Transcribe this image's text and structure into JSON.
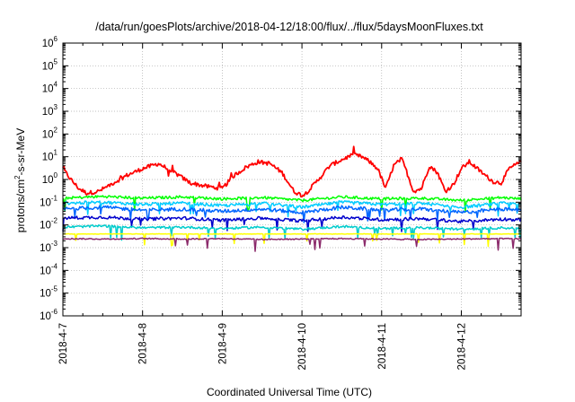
{
  "chart_data": {
    "type": "line",
    "title": "/data/run/goesPlots/archive/2018-04-12/18:00/flux/../flux/5daysMoonFluxes.txt",
    "xlabel": "Coordinated Universal Time (UTC)",
    "ylabel": "protons/cm2-s-sr-MeV",
    "yscale": "log",
    "ylim": [
      1e-06,
      1000000.0
    ],
    "xlim": [
      "2018-4-7",
      "2018-4-12 18:00"
    ],
    "x_ticks": [
      "2018-4-7",
      "2018-4-8",
      "2018-4-9",
      "2018-4-10",
      "2018-4-11",
      "2018-4-12"
    ],
    "y_ticks": [
      -6,
      -5,
      -4,
      -3,
      -2,
      -1,
      0,
      1,
      2,
      3,
      4,
      5,
      6
    ],
    "grid": true,
    "legend": "none",
    "series": [
      {
        "color": "#ff0000",
        "x_days": [
          0,
          0.1,
          0.2,
          0.3,
          0.45,
          0.6,
          0.8,
          1.0,
          1.2,
          1.4,
          1.6,
          1.8,
          2.0,
          2.15,
          2.3,
          2.45,
          2.6,
          2.75,
          2.9,
          3.0,
          3.05,
          3.15,
          3.25,
          3.35,
          3.45,
          3.55,
          3.65,
          3.75,
          3.85,
          3.95,
          4.05,
          4.15,
          4.25,
          4.3,
          4.4,
          4.5,
          4.6,
          4.7,
          4.8,
          4.9,
          5.0,
          5.1,
          5.2,
          5.3,
          5.4,
          5.5,
          5.6,
          5.75
        ],
        "values": [
          3,
          1,
          0.4,
          0.25,
          0.3,
          0.6,
          1.5,
          3,
          5,
          2,
          0.7,
          0.5,
          0.4,
          1.5,
          3.5,
          6,
          5,
          2,
          0.3,
          0.2,
          0.25,
          0.6,
          1.5,
          4,
          6,
          9,
          12,
          10,
          6,
          3,
          0.4,
          4,
          8,
          3,
          0.3,
          0.4,
          4,
          2,
          0.3,
          0.6,
          3,
          6,
          3,
          1.5,
          0.8,
          0.7,
          3,
          6
        ]
      },
      {
        "color": "#00ff00",
        "x_days": [
          0,
          0.5,
          1.0,
          1.5,
          2.0,
          2.5,
          3.0,
          3.5,
          4.0,
          4.5,
          5.0,
          5.5,
          5.75
        ],
        "values": [
          0.15,
          0.18,
          0.15,
          0.17,
          0.14,
          0.16,
          0.12,
          0.17,
          0.14,
          0.15,
          0.12,
          0.16,
          0.14
        ]
      },
      {
        "color": "#00ccff",
        "x_days": [
          0,
          0.5,
          1.0,
          1.5,
          2.0,
          2.5,
          3.0,
          3.5,
          4.0,
          4.5,
          5.0,
          5.5,
          5.75
        ],
        "values": [
          0.09,
          0.1,
          0.08,
          0.09,
          0.07,
          0.09,
          0.06,
          0.1,
          0.08,
          0.09,
          0.06,
          0.09,
          0.08
        ]
      },
      {
        "color": "#0066ff",
        "x_days": [
          0,
          0.5,
          1.0,
          1.5,
          2.0,
          2.5,
          3.0,
          3.5,
          4.0,
          4.5,
          5.0,
          5.5,
          5.75
        ],
        "values": [
          0.05,
          0.06,
          0.045,
          0.05,
          0.04,
          0.05,
          0.035,
          0.06,
          0.045,
          0.05,
          0.035,
          0.05,
          0.045
        ]
      },
      {
        "color": "#0000cc",
        "x_days": [
          0,
          0.5,
          1.0,
          1.5,
          2.0,
          2.5,
          3.0,
          3.5,
          4.0,
          4.5,
          5.0,
          5.5,
          5.75
        ],
        "values": [
          0.02,
          0.022,
          0.018,
          0.02,
          0.016,
          0.02,
          0.015,
          0.022,
          0.017,
          0.019,
          0.014,
          0.018,
          0.017
        ]
      },
      {
        "color": "#00cccc",
        "x_days": [
          0,
          0.5,
          1.0,
          1.5,
          2.0,
          2.5,
          3.0,
          3.5,
          4.0,
          4.5,
          5.0,
          5.5,
          5.75
        ],
        "values": [
          0.008,
          0.009,
          0.0075,
          0.008,
          0.007,
          0.008,
          0.0065,
          0.0085,
          0.007,
          0.0075,
          0.0065,
          0.0075,
          0.007
        ]
      },
      {
        "color": "#ffff00",
        "x_days": [
          0,
          0.5,
          1.0,
          1.5,
          2.0,
          2.5,
          3.0,
          3.5,
          4.0,
          4.5,
          5.0,
          5.5,
          5.75
        ],
        "values": [
          0.004,
          0.004,
          0.004,
          0.004,
          0.004,
          0.004,
          0.004,
          0.004,
          0.004,
          0.004,
          0.004,
          0.004,
          0.004
        ]
      },
      {
        "color": "#8b2a6b",
        "x_days": [
          0,
          0.5,
          1.0,
          1.5,
          2.0,
          2.5,
          3.0,
          3.5,
          4.0,
          4.5,
          5.0,
          5.5,
          5.75
        ],
        "values": [
          0.0025,
          0.0024,
          0.0025,
          0.0024,
          0.0025,
          0.0023,
          0.0024,
          0.0025,
          0.0024,
          0.0023,
          0.0024,
          0.0025,
          0.0024
        ]
      }
    ]
  }
}
